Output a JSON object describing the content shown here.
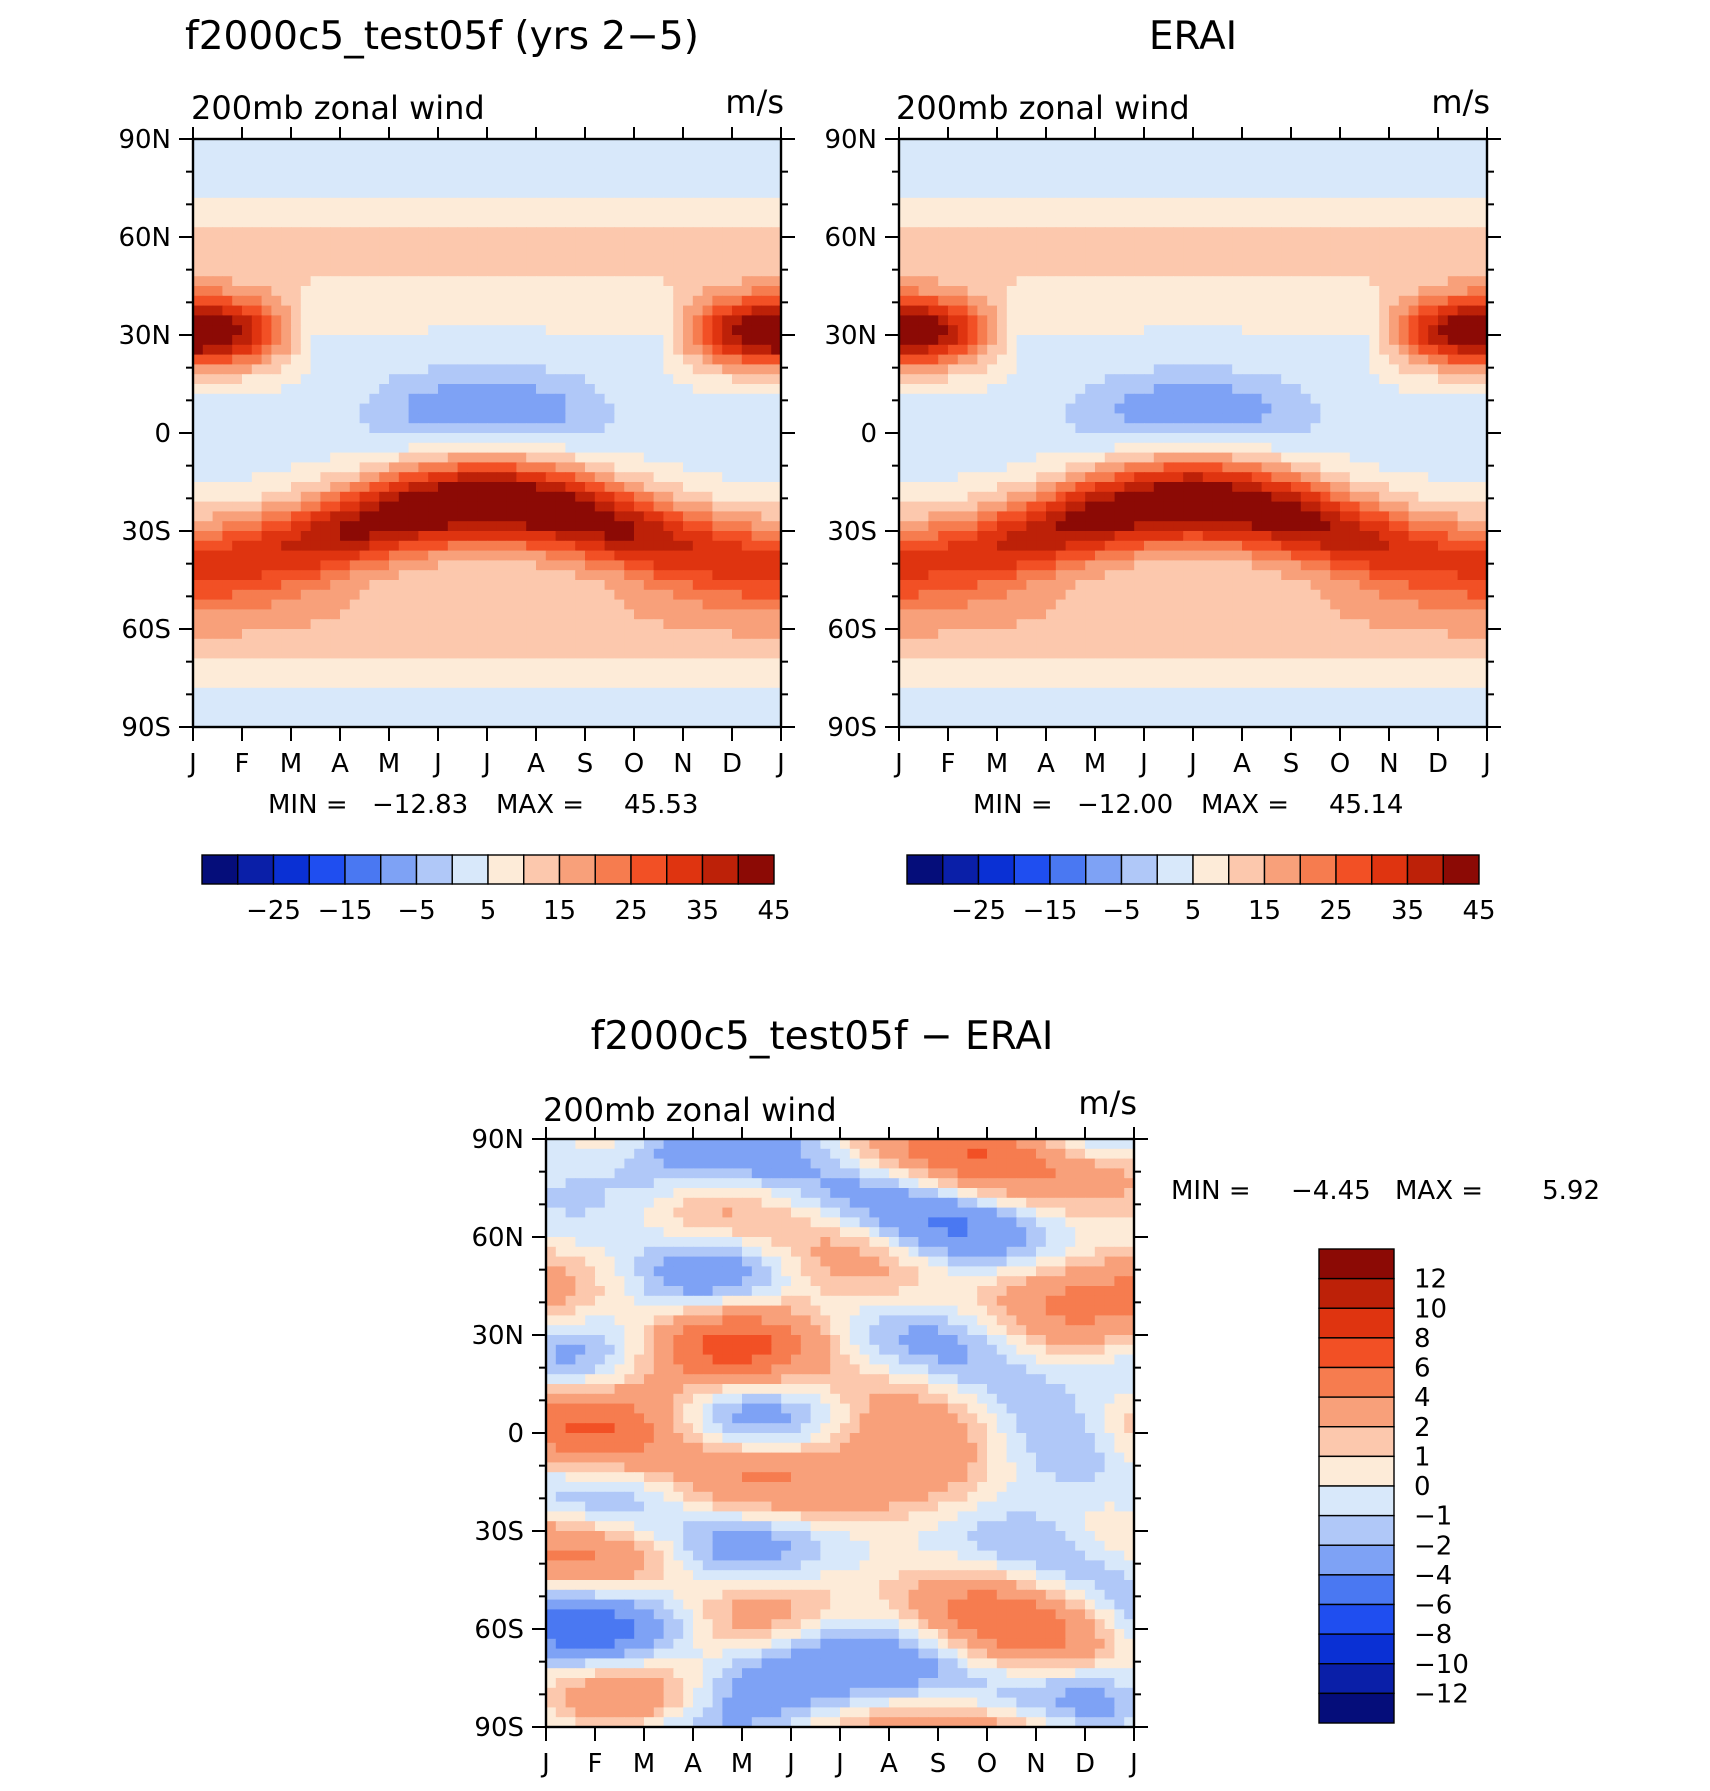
{
  "chart_data": [
    {
      "type": "heatmap",
      "title": "f2000c5_test05f (yrs 2−5)",
      "left_label": "200mb zonal wind",
      "right_label": "m/s",
      "x_ticks": [
        "J",
        "F",
        "M",
        "A",
        "M",
        "J",
        "J",
        "A",
        "S",
        "O",
        "N",
        "D",
        "J"
      ],
      "y_ticks": [
        "90N",
        "60N",
        "30N",
        "0",
        "30S",
        "60S",
        "90S"
      ],
      "y_range": [
        -90,
        90
      ],
      "min_label": "MIN =",
      "min_value": "−12.83",
      "max_label": "MAX =",
      "max_value": "45.53",
      "levels": [
        -30,
        -25,
        -20,
        -15,
        -10,
        -5,
        0,
        5,
        10,
        15,
        20,
        25,
        30,
        35,
        40,
        45
      ],
      "colorbar_labels": [
        "−25",
        "−15",
        "−5",
        "5",
        "15",
        "25",
        "35",
        "45"
      ],
      "field": "model"
    },
    {
      "type": "heatmap",
      "title": "ERAI",
      "left_label": "200mb zonal wind",
      "right_label": "m/s",
      "x_ticks": [
        "J",
        "F",
        "M",
        "A",
        "M",
        "J",
        "J",
        "A",
        "S",
        "O",
        "N",
        "D",
        "J"
      ],
      "y_ticks": [
        "90N",
        "60N",
        "30N",
        "0",
        "30S",
        "60S",
        "90S"
      ],
      "y_range": [
        -90,
        90
      ],
      "min_label": "MIN =",
      "min_value": "−12.00",
      "max_label": "MAX =",
      "max_value": "45.14",
      "levels": [
        -30,
        -25,
        -20,
        -15,
        -10,
        -5,
        0,
        5,
        10,
        15,
        20,
        25,
        30,
        35,
        40,
        45
      ],
      "colorbar_labels": [
        "−25",
        "−15",
        "−5",
        "5",
        "15",
        "25",
        "35",
        "45"
      ],
      "field": "obs"
    },
    {
      "type": "heatmap",
      "title": "f2000c5_test05f − ERAI",
      "left_label": "200mb zonal wind",
      "right_label": "m/s",
      "x_ticks": [
        "J",
        "F",
        "M",
        "A",
        "M",
        "J",
        "J",
        "A",
        "S",
        "O",
        "N",
        "D",
        "J"
      ],
      "y_ticks": [
        "90N",
        "60N",
        "30N",
        "0",
        "30S",
        "60S",
        "90S"
      ],
      "y_range": [
        -90,
        90
      ],
      "min_label": "MIN =",
      "min_value": "−4.45",
      "max_label": "MAX =",
      "max_value": "5.92",
      "levels": [
        -12,
        -10,
        -8,
        -6,
        -4,
        -2,
        -1,
        0,
        1,
        2,
        4,
        6,
        8,
        10,
        12
      ],
      "colorbar_labels": [
        "12",
        "10",
        "8",
        "6",
        "4",
        "2",
        "1",
        "0",
        "−1",
        "−2",
        "−4",
        "−6",
        "−8",
        "−10",
        "−12"
      ],
      "field": "diff"
    }
  ],
  "colors": {
    "main_scale": [
      "#050d7a",
      "#0a1fa8",
      "#0a30d4",
      "#1f4ef0",
      "#4a78f2",
      "#7ea2f5",
      "#b0c8f8",
      "#d8e8fa",
      "#fdebd8",
      "#fcc8ad",
      "#f8a07a",
      "#f67c4f",
      "#f25025",
      "#df3410",
      "#bd2108",
      "#8c0a05"
    ],
    "diff_scale": [
      "#8c0a05",
      "#bd2108",
      "#df3410",
      "#f25025",
      "#f67c4f",
      "#f8a07a",
      "#fcc8ad",
      "#fdebd8",
      "#d8e8fa",
      "#b0c8f8",
      "#7ea2f5",
      "#4a78f2",
      "#1f4ef0",
      "#0a30d4",
      "#0a1fa8",
      "#050d7a"
    ]
  }
}
